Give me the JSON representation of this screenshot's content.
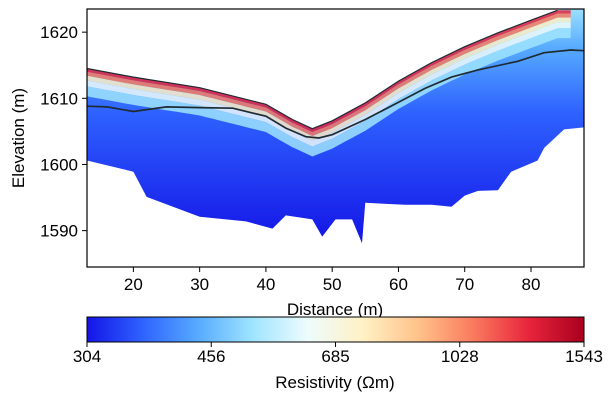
{
  "chart_data": {
    "type": "heatmap",
    "title": "",
    "xlabel": "Distance (m)",
    "ylabel": "Elevation (m)",
    "xlim": [
      13,
      88
    ],
    "ylim": [
      1584.5,
      1623.5
    ],
    "xticks": [
      20,
      30,
      40,
      50,
      60,
      70,
      80
    ],
    "yticks": [
      1590,
      1600,
      1610,
      1620
    ],
    "colorbar": {
      "label": "Resistivity (Ωm)",
      "ticks": [
        304,
        456,
        685,
        1028,
        1543
      ],
      "colormap": [
        "#1414e6",
        "#2e62ff",
        "#56aaff",
        "#9fe4ff",
        "#eefcfd",
        "#fff1c4",
        "#ffc28a",
        "#fa7a5e",
        "#e8243c",
        "#a8001e"
      ]
    },
    "surface_line": [
      [
        13,
        1614.5
      ],
      [
        20,
        1613.2
      ],
      [
        30,
        1611.6
      ],
      [
        40,
        1609.1
      ],
      [
        44,
        1606.8
      ],
      [
        47,
        1605.4
      ],
      [
        50,
        1606.6
      ],
      [
        55,
        1609.3
      ],
      [
        60,
        1612.6
      ],
      [
        65,
        1615.4
      ],
      [
        70,
        1617.8
      ],
      [
        75,
        1619.9
      ],
      [
        80,
        1621.8
      ],
      [
        84,
        1623.3
      ]
    ],
    "depth_boundary": [
      [
        13,
        1608.8
      ],
      [
        16,
        1608.7
      ],
      [
        20,
        1608.0
      ],
      [
        25,
        1608.7
      ],
      [
        30,
        1608.6
      ],
      [
        35,
        1608.5
      ],
      [
        40,
        1607.3
      ],
      [
        43,
        1605.5
      ],
      [
        46,
        1604.2
      ],
      [
        48,
        1604.0
      ],
      [
        50,
        1604.5
      ],
      [
        55,
        1606.8
      ],
      [
        60,
        1609.4
      ],
      [
        64,
        1611.5
      ],
      [
        68,
        1613.2
      ],
      [
        72,
        1614.3
      ],
      [
        78,
        1615.6
      ],
      [
        82,
        1616.9
      ],
      [
        86,
        1617.3
      ],
      [
        88,
        1617.2
      ]
    ],
    "bottom_boundary": [
      [
        13,
        1600.6
      ],
      [
        20,
        1598.9
      ],
      [
        22,
        1595.1
      ],
      [
        30,
        1592.1
      ],
      [
        37,
        1591.4
      ],
      [
        41,
        1590.3
      ],
      [
        43,
        1592.3
      ],
      [
        47,
        1591.7
      ],
      [
        48.5,
        1589.1
      ],
      [
        50.5,
        1591.7
      ],
      [
        53,
        1591.7
      ],
      [
        54.5,
        1588.1
      ],
      [
        55,
        1594.2
      ],
      [
        61,
        1593.9
      ],
      [
        65,
        1593.9
      ],
      [
        68,
        1593.6
      ],
      [
        70,
        1595.3
      ],
      [
        72,
        1596.0
      ],
      [
        75,
        1596.1
      ],
      [
        77,
        1598.9
      ],
      [
        81,
        1600.6
      ],
      [
        82,
        1602.5
      ],
      [
        85,
        1605.3
      ],
      [
        88,
        1605.6
      ],
      [
        88,
        1610
      ]
    ]
  }
}
